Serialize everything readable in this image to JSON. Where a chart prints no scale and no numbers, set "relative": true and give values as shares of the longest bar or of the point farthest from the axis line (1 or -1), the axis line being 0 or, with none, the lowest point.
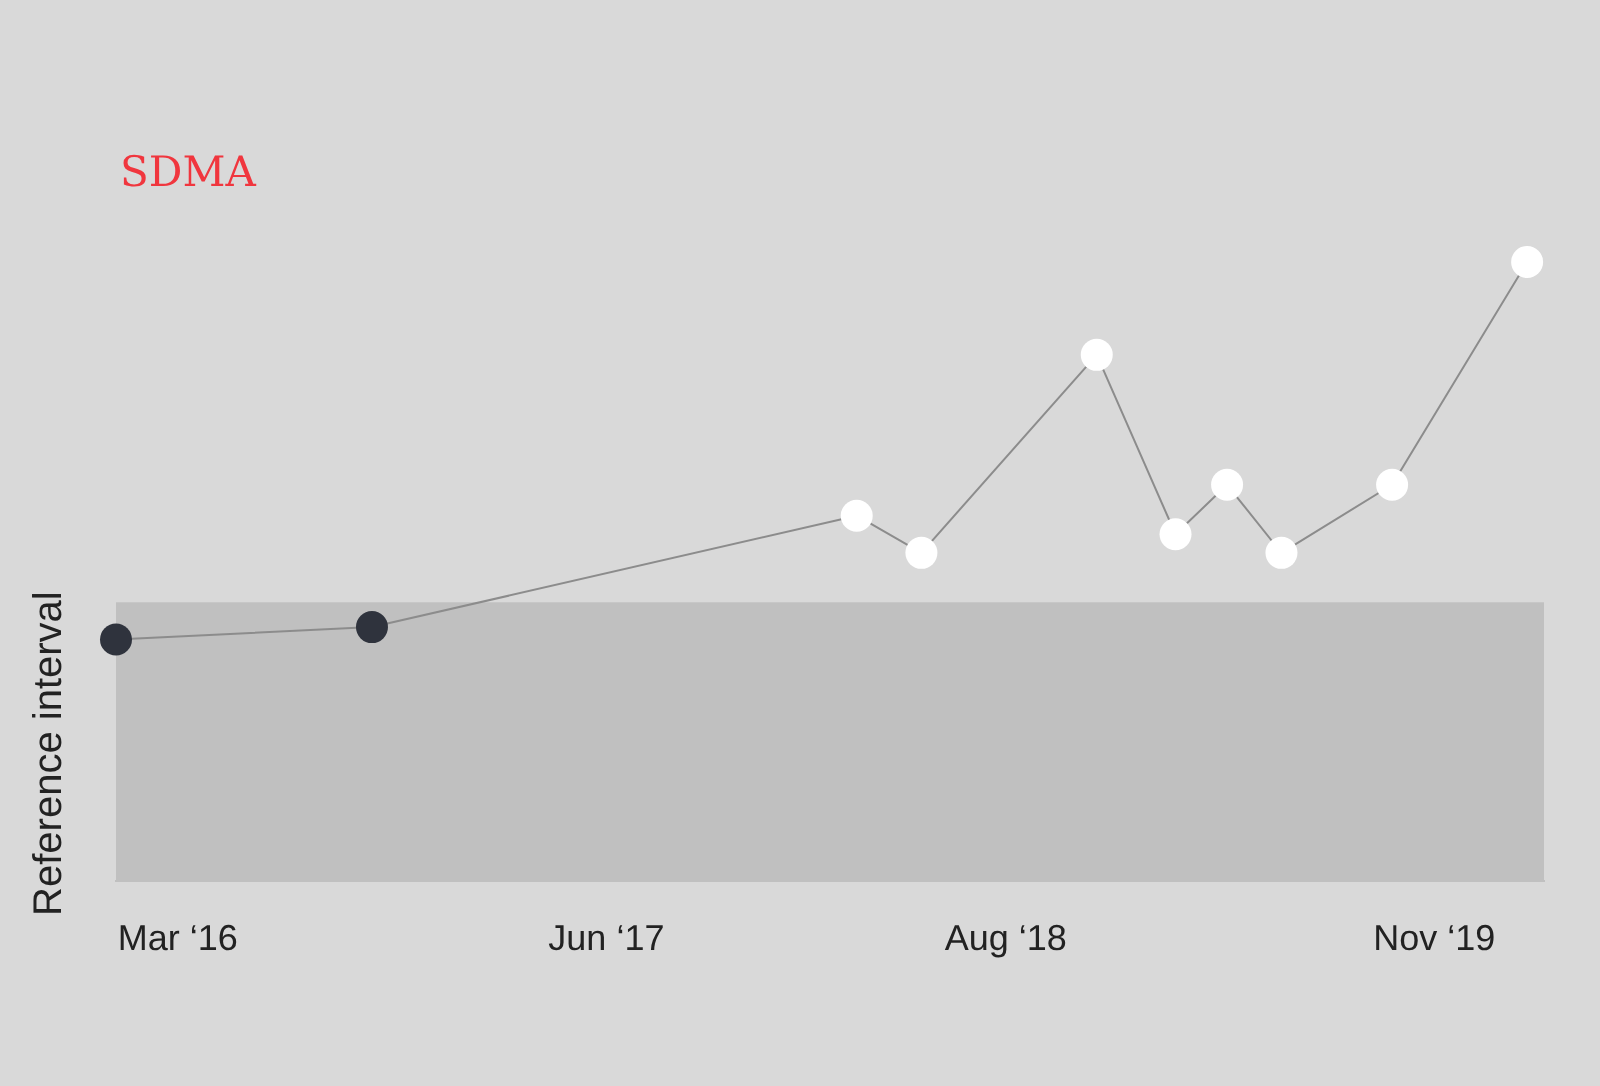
{
  "chart_data": {
    "type": "line",
    "title": "SDMA",
    "relative": true,
    "tick_labels": "x",
    "marker": "circle",
    "line_style": "solid",
    "x": [
      "2016-01-09",
      "2016-10-08",
      "2018-03-09",
      "2018-05-17",
      "2018-11-20",
      "2019-02-12",
      "2019-04-08",
      "2019-06-05",
      "2019-10-01",
      "2020-02-22"
    ],
    "xlim": [
      "2016-01-09",
      "2020-03-11"
    ],
    "xticks": [
      {
        "value": "2016-03-15",
        "label": "Mar ‘16"
      },
      {
        "value": "2017-06-15",
        "label": "Jun ‘17"
      },
      {
        "value": "2018-08-15",
        "label": "Aug ‘18"
      },
      {
        "value": "2019-11-15",
        "label": "Nov ‘19"
      }
    ],
    "series": [
      {
        "color": "#8c8c8c",
        "colors": [
          "#2f333d",
          "#2f333d",
          "#ffffff",
          "#ffffff",
          "#ffffff",
          "#ffffff",
          "#ffffff",
          "#ffffff",
          "#ffffff",
          "#ffffff"
        ],
        "values": [
          0.39,
          0.41,
          0.59,
          0.53,
          0.85,
          0.56,
          0.64,
          0.53,
          0.64,
          1
        ]
      }
    ],
    "bands": [
      {
        "axis": "y",
        "from": 0,
        "to": 0.45,
        "label": "Reference interval",
        "color": "#c0c0c0"
      }
    ]
  }
}
